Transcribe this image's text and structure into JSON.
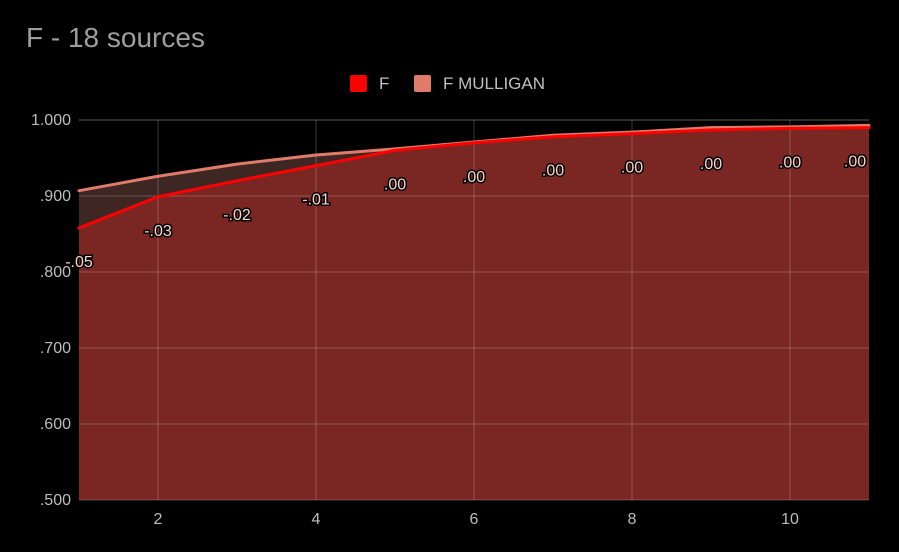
{
  "chart_data": {
    "type": "area",
    "title": "F - 18 sources",
    "xlabel": "",
    "ylabel": "",
    "x": [
      1,
      2,
      3,
      4,
      5,
      6,
      7,
      8,
      9,
      10,
      11
    ],
    "xlim": [
      1,
      11
    ],
    "ylim": [
      0.5,
      1.0
    ],
    "x_ticks": [
      2,
      4,
      6,
      8,
      10
    ],
    "x_tick_labels": [
      "2",
      "4",
      "6",
      "8",
      "10"
    ],
    "y_ticks": [
      0.5,
      0.6,
      0.7,
      0.8,
      0.9,
      1.0
    ],
    "y_tick_labels": [
      ".500",
      ".600",
      ".700",
      ".800",
      ".900",
      "1.000"
    ],
    "grid": true,
    "legend_position": "top",
    "series": [
      {
        "name": "F",
        "color": "#ff0000",
        "values": [
          0.858,
          0.899,
          0.92,
          0.94,
          0.96,
          0.97,
          0.978,
          0.982,
          0.987,
          0.989,
          0.99
        ],
        "data_labels": [
          "-.05",
          "-.03",
          "-.02",
          "-.01",
          ".00",
          ".00",
          ".00",
          ".00",
          ".00",
          ".00",
          ".00"
        ]
      },
      {
        "name": "F MULLIGAN",
        "color": "#e07b6a",
        "values": [
          0.907,
          0.926,
          0.942,
          0.954,
          0.962,
          0.971,
          0.98,
          0.984,
          0.99,
          0.991,
          0.993
        ]
      }
    ]
  }
}
